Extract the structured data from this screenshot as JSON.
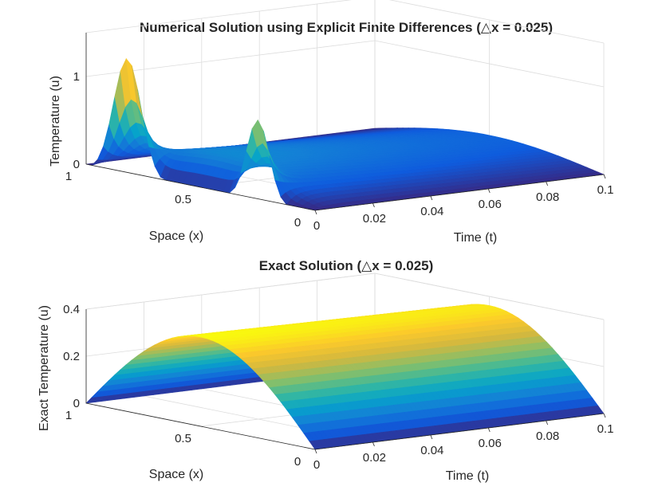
{
  "chart_data": [
    {
      "type": "surface",
      "title": "Numerical Solution using Explicit Finite Differences (△x = 0.025)",
      "xlabel": "Time (t)",
      "ylabel": "Space (x)",
      "zlabel": "Temperature (u)",
      "xlim": [
        0,
        0.1
      ],
      "ylim": [
        0,
        1
      ],
      "zlim": [
        0,
        1.5
      ],
      "x_ticks": [
        "0",
        "0.02",
        "0.04",
        "0.06",
        "0.08",
        "0.1"
      ],
      "y_ticks": [
        "0",
        "0.5",
        "1"
      ],
      "z_ticks": [
        "0",
        "1"
      ],
      "grid": true,
      "colormap": "parula",
      "dx": 0.025,
      "description_values": {
        "initial_peak_u": 1.4,
        "peak_u_late": 0.2
      }
    },
    {
      "type": "surface",
      "title": "Exact Solution (△x = 0.025)",
      "xlabel": "Time (t)",
      "ylabel": "Space (x)",
      "zlabel": "Exact Temperature (u)",
      "xlim": [
        0,
        0.1
      ],
      "ylim": [
        0,
        1
      ],
      "zlim": [
        0,
        0.4
      ],
      "x_ticks": [
        "0",
        "0.02",
        "0.04",
        "0.06",
        "0.08",
        "0.1"
      ],
      "y_ticks": [
        "0",
        "0.5",
        "1"
      ],
      "z_ticks": [
        "0",
        "0.2",
        "0.4"
      ],
      "grid": true,
      "colormap": "parula",
      "dx": 0.025,
      "description_values": {
        "peak_u": 0.38
      }
    }
  ]
}
